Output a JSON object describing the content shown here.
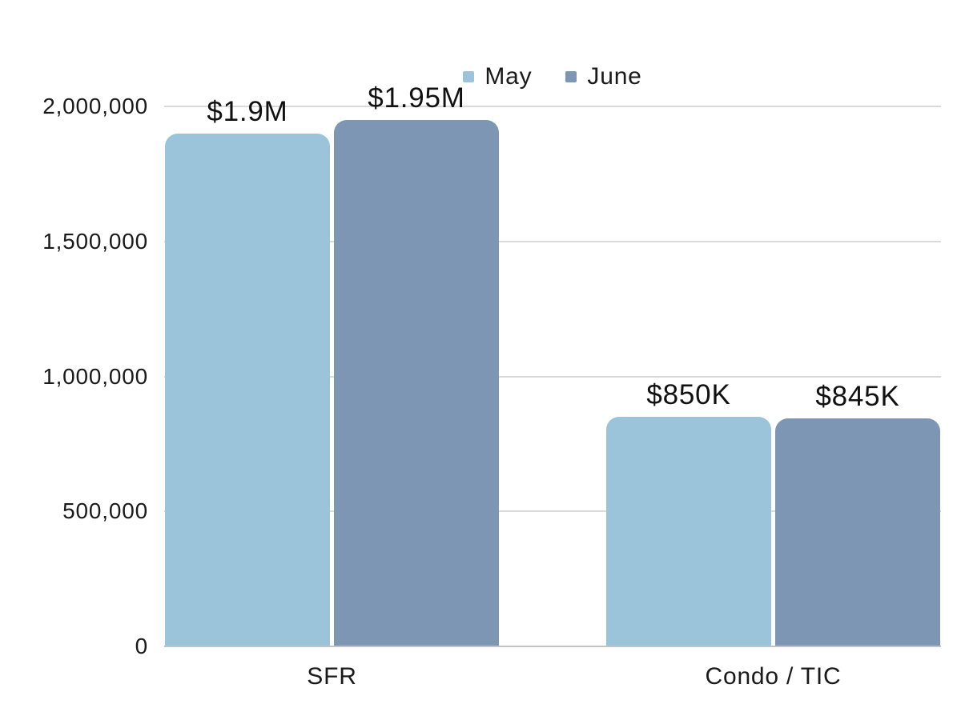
{
  "chart_data": {
    "type": "bar",
    "title": "",
    "xlabel": "",
    "ylabel": "",
    "categories": [
      "SFR",
      "Condo / TIC"
    ],
    "series": [
      {
        "name": "May",
        "color": "#9BC3DA",
        "values": [
          1900000,
          850000
        ],
        "labels": [
          "$1.9M",
          "$850K"
        ]
      },
      {
        "name": "June",
        "color": "#7D96B4",
        "values": [
          1950000,
          845000
        ],
        "labels": [
          "$1.95M",
          "$845K"
        ]
      }
    ],
    "ylim": [
      0,
      2000000
    ],
    "yticks": [
      0,
      500000,
      1000000,
      1500000,
      2000000
    ],
    "ytick_labels": [
      "0",
      "500,000",
      "1,000,000",
      "1,500,000",
      "2,000,000"
    ],
    "grid": true,
    "legend_position": "top-center"
  },
  "colors": {
    "background": "#ffffff",
    "text": "#1a1a1a",
    "gridline": "#dadada",
    "axis_line": "#c2c2c2",
    "series_may": "#9BC3DA",
    "series_june": "#7D96B4"
  }
}
